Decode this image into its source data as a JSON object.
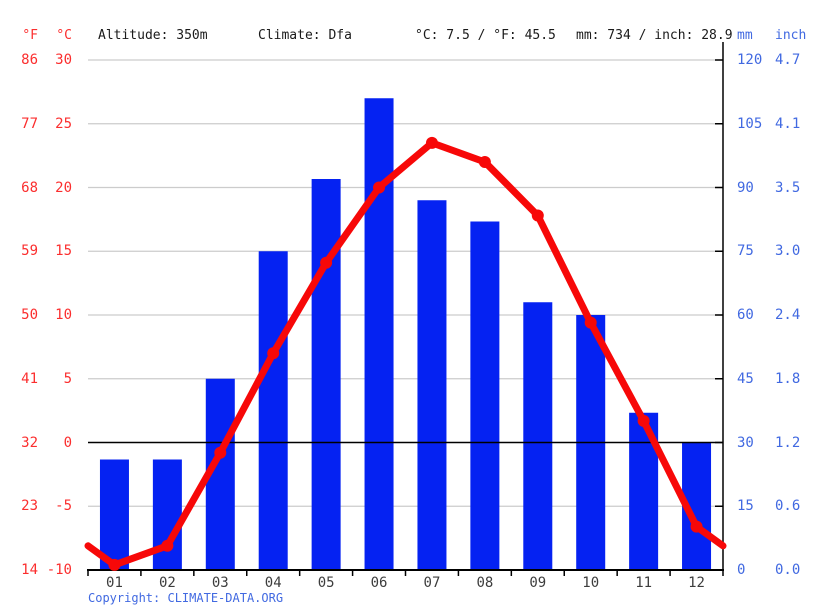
{
  "header": {
    "f_label": "°F",
    "c_label": "°C",
    "altitude": "Altitude: 350m",
    "climate": "Climate: Dfa",
    "temp_summary": "°C: 7.5 / °F: 45.5",
    "precip_summary": "mm: 734 / inch: 28.9",
    "mm_label": "mm",
    "inch_label": "inch"
  },
  "footer": {
    "copyright_label": "Copyright: ",
    "link_text": "CLIMATE-DATA.ORG"
  },
  "colors": {
    "bar_blue": "#0522f2",
    "line_red": "#f70808",
    "axis_text_red": "#fb2e2e",
    "axis_text_blue": "#4169e1",
    "gridline_gray": "#cccccc",
    "axis_black": "#000000",
    "month_text": "#3d3d3d"
  },
  "chart_data": {
    "type": "combo",
    "title": "Climate graph (monthly precipitation bars and temperature line)",
    "categories": [
      "01",
      "02",
      "03",
      "04",
      "05",
      "06",
      "07",
      "08",
      "09",
      "10",
      "11",
      "12"
    ],
    "series": [
      {
        "name": "Precipitation",
        "type": "bar",
        "unit": "mm",
        "values": [
          26,
          26,
          45,
          75,
          92,
          111,
          87,
          82,
          63,
          60,
          37,
          30
        ],
        "annual_total_mm": 734,
        "color": "#0522f2"
      },
      {
        "name": "Temperature",
        "type": "line",
        "unit": "°C",
        "values": [
          -9.6,
          -8.1,
          -0.8,
          7.0,
          14.1,
          20.0,
          23.5,
          22.0,
          17.8,
          9.4,
          1.7,
          -6.6
        ],
        "annual_mean_c": 7.5,
        "edge_value": -8.1,
        "color": "#f70808"
      }
    ],
    "axes": {
      "left_fahrenheit_ticks": [
        "86",
        "77",
        "68",
        "59",
        "50",
        "41",
        "32",
        "23",
        "14"
      ],
      "left_celsius_ticks": [
        "30",
        "25",
        "20",
        "15",
        "10",
        "5",
        "0",
        "-5",
        "-10"
      ],
      "right_mm_ticks": [
        "120",
        "105",
        "90",
        "75",
        "60",
        "45",
        "30",
        "15",
        "0"
      ],
      "right_inch_ticks": [
        "4.7",
        "4.1",
        "3.5",
        "3.0",
        "2.4",
        "1.8",
        "1.2",
        "0.6",
        "0.0"
      ],
      "celsius_range": [
        -10,
        30
      ],
      "mm_range": [
        0,
        120
      ]
    },
    "grid": true,
    "zero_line_celsius": 0,
    "legend": "none"
  }
}
